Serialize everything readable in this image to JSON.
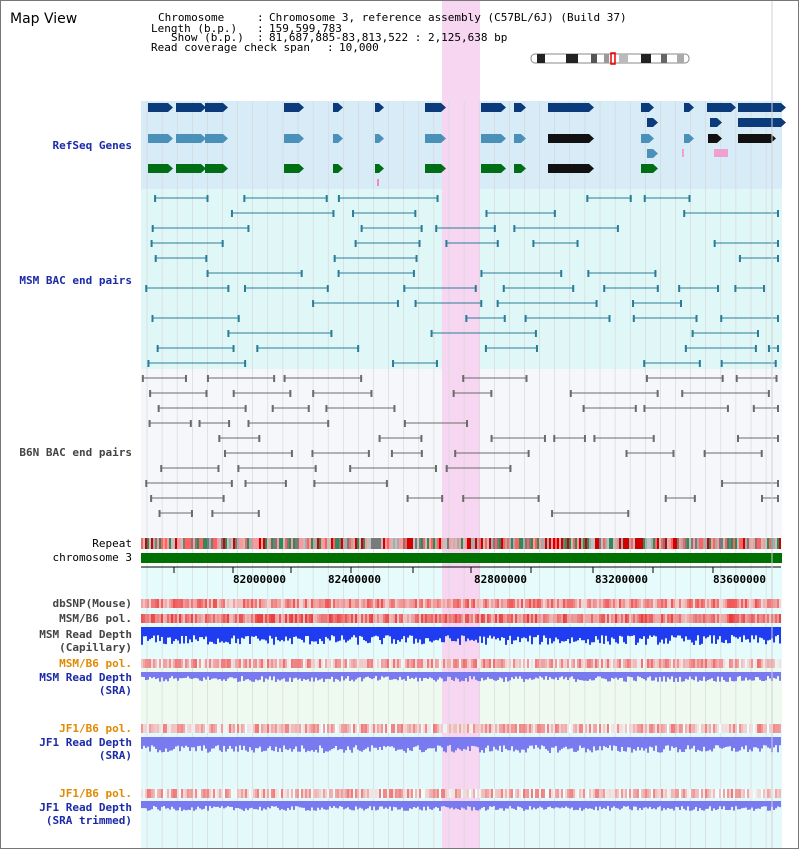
{
  "title": "Map View",
  "info": {
    "chromosome_key": "Chromosome",
    "chromosome_val": "Chromosome 3, reference assembly (C57BL/6J) (Build 37)",
    "length_key": "Length (b.p.)",
    "length_val": "159,599,783",
    "show_key": "Show (b.p.)",
    "show_val": "81,687,885-83,813,522 : 2,125,638 bp",
    "coverage_key": "Read coverage check span",
    "coverage_val": "10,000"
  },
  "tracks": {
    "refseq": "RefSeq Genes",
    "msm_bac": "MSM BAC end pairs",
    "b6n_bac": "B6N BAC end pairs",
    "repeat": "Repeat",
    "chrom": "chromosome 3",
    "dbsnp": "dbSNP(Mouse)",
    "msm_b6_pol_1": "MSM/B6 pol.",
    "msm_depth_cap_1": "MSM Read Depth",
    "msm_depth_cap_2": "(Capillary)",
    "msm_b6_pol_2": "MSM/B6 pol.",
    "msm_depth_sra_1": "MSM Read Depth",
    "msm_depth_sra_2": "(SRA)",
    "jf1_b6_pol_1": "JF1/B6 pol.",
    "jf1_depth_sra_1": "JF1 Read Depth",
    "jf1_depth_sra_2": "(SRA)",
    "jf1_b6_pol_2": "JF1/B6 pol.",
    "jf1_depth_trim_1": "JF1 Read Depth",
    "jf1_depth_trim_2": "(SRA trimmed)"
  },
  "axis": {
    "ticks": [
      "82000000",
      "82400000",
      "82800000",
      "83200000",
      "83600000"
    ]
  },
  "colors": {
    "highlight": "#f7d6f2",
    "refseq_bg": "#d8ecf8",
    "msm_bg": "#e0f7f7",
    "b6n_bg": "#f6f7fb",
    "gene_navy": "#0b3b7a",
    "gene_steel": "#4a90b8",
    "gene_green": "#006e14",
    "msm_line": "#2b7c98",
    "b6n_line": "#6b6b6b",
    "chrom_green": "#007000",
    "depth_blue": "#1f3cf0",
    "depth_light": "#7a7af0"
  }
}
